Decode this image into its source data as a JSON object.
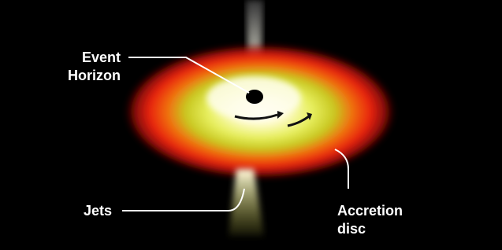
{
  "labels": {
    "event_horizon": [
      "Event",
      "Horizon"
    ],
    "jets": "Jets",
    "accretion_disc": [
      "Accretion",
      "disc"
    ]
  }
}
